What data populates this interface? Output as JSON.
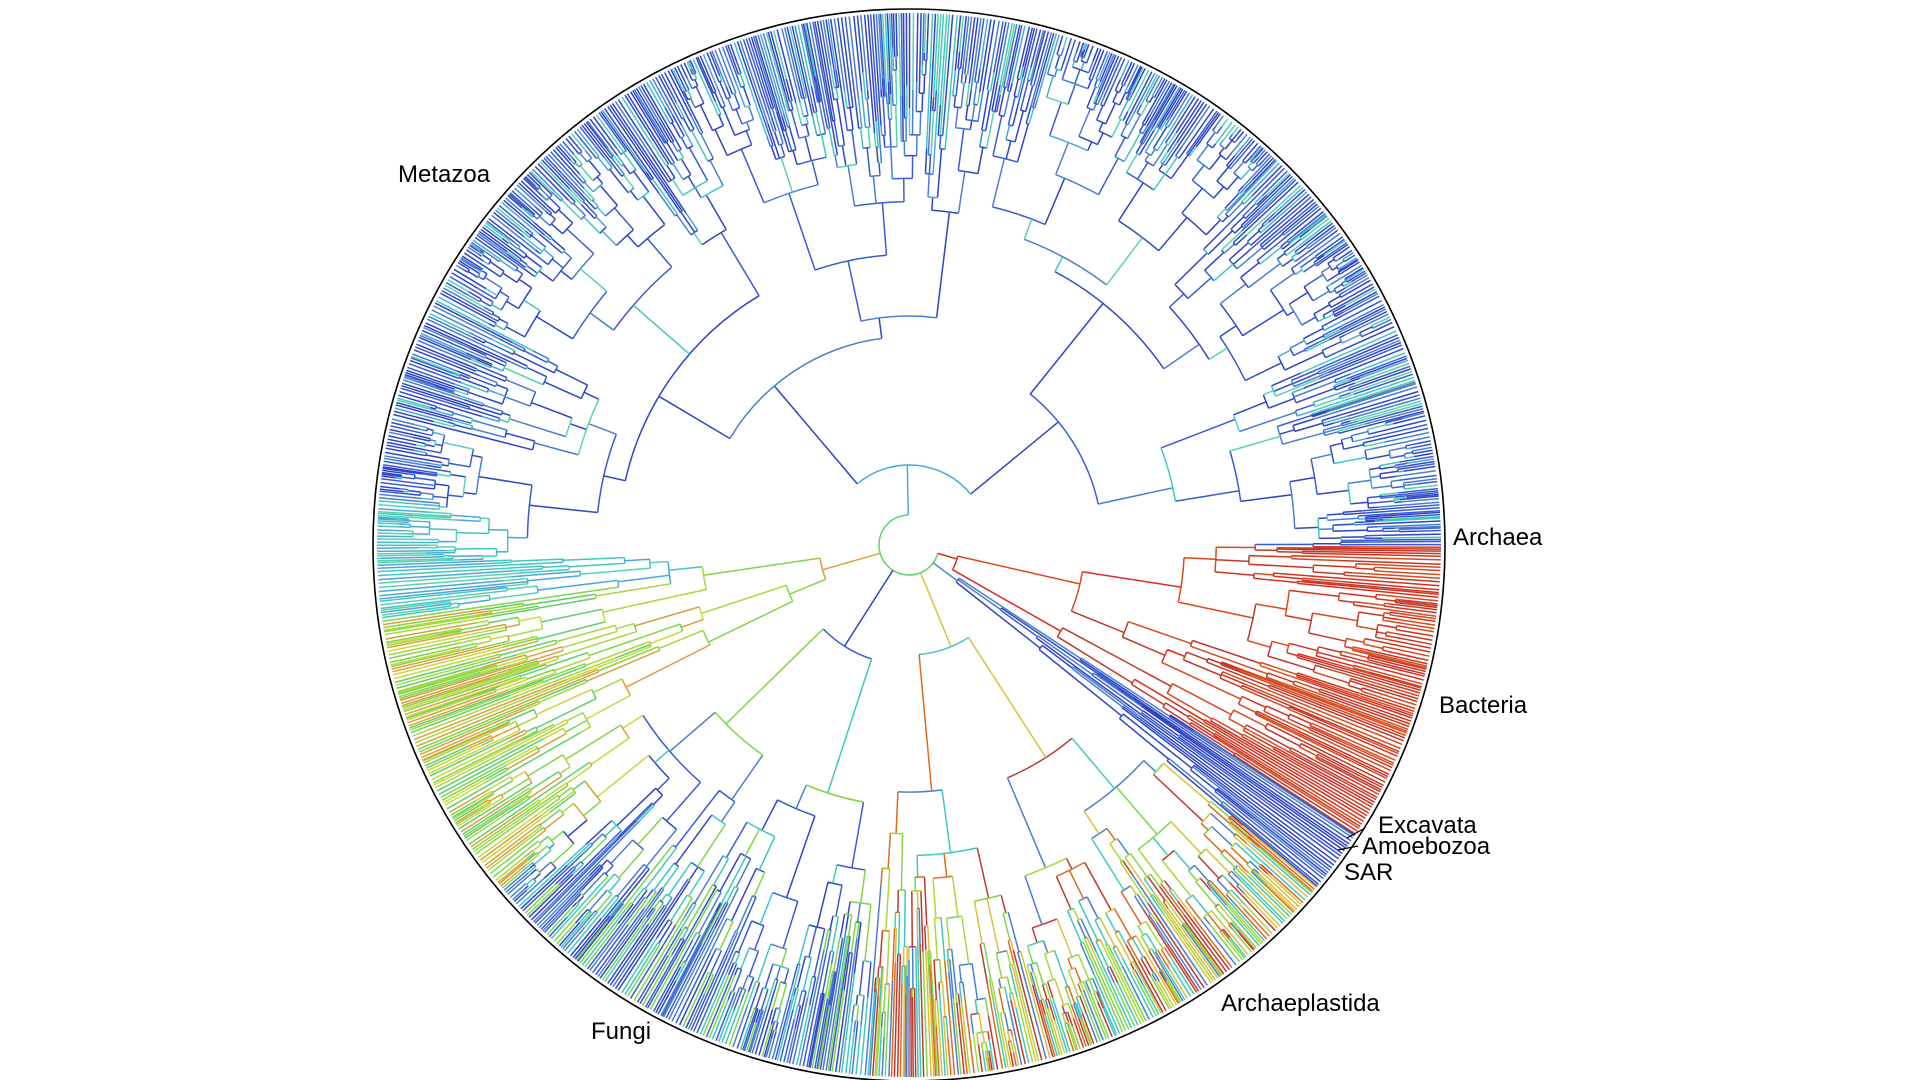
{
  "labels": {
    "metazoa": "Metazoa",
    "archaea": "Archaea",
    "bacteria": "Bacteria",
    "excavata": "Excavata",
    "amoebozoa": "Amoebozoa",
    "sar": "SAR",
    "archaeplastida": "Archaeplastida",
    "fungi": "Fungi"
  }
}
